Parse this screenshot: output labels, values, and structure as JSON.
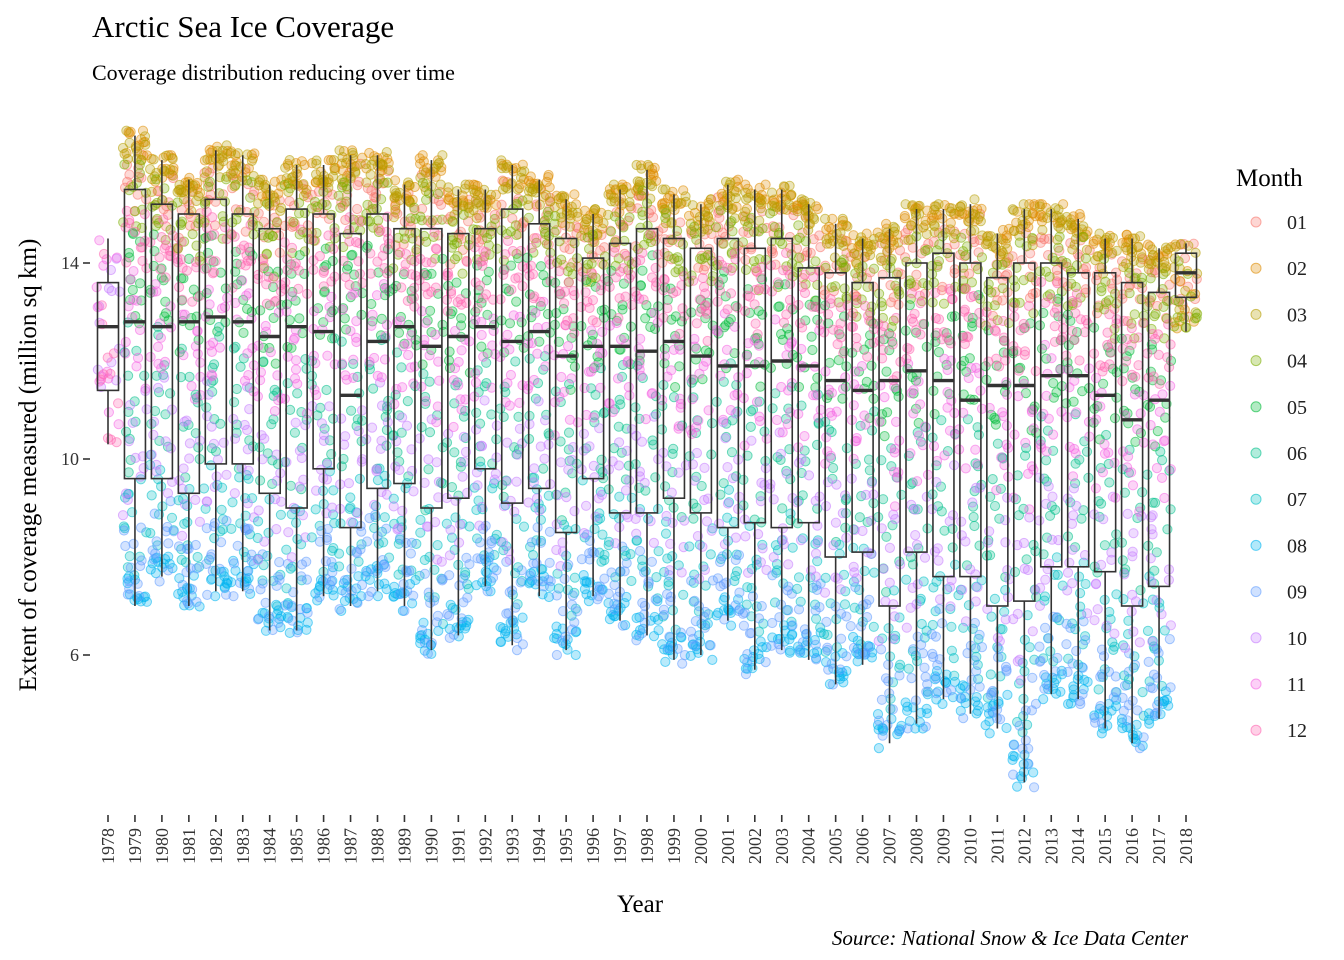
{
  "chart_data": {
    "type": "box",
    "title": "Arctic Sea Ice Coverage",
    "subtitle": "Coverage distribution reducing over time",
    "xlabel": "Year",
    "ylabel": "Extent of coverage measured (million sq km)",
    "caption": "Source: National Snow & Ice Data Center",
    "ylim": [
      3.2,
      16.8
    ],
    "yticks": [
      6,
      10,
      14
    ],
    "grid": false,
    "legend": {
      "title": "Month",
      "placement": "right",
      "entries": [
        "01",
        "02",
        "03",
        "04",
        "05",
        "06",
        "07",
        "08",
        "09",
        "10",
        "11",
        "12"
      ]
    },
    "month_colors": [
      "#F8766D",
      "#DE8C00",
      "#B79F00",
      "#7CAE00",
      "#00BA38",
      "#00C08B",
      "#00BFC4",
      "#00B4F0",
      "#619CFF",
      "#C77CFF",
      "#F564E3",
      "#FF64B0"
    ],
    "categories": [
      "1978",
      "1979",
      "1980",
      "1981",
      "1982",
      "1983",
      "1984",
      "1985",
      "1986",
      "1987",
      "1988",
      "1989",
      "1990",
      "1991",
      "1992",
      "1993",
      "1994",
      "1995",
      "1996",
      "1997",
      "1998",
      "1999",
      "2000",
      "2001",
      "2002",
      "2003",
      "2004",
      "2005",
      "2006",
      "2007",
      "2008",
      "2009",
      "2010",
      "2011",
      "2012",
      "2013",
      "2014",
      "2015",
      "2016",
      "2017",
      "2018"
    ],
    "boxes": [
      {
        "min": 10.3,
        "q1": 11.4,
        "median": 12.7,
        "q3": 13.6,
        "max": 14.5
      },
      {
        "min": 7.0,
        "q1": 9.6,
        "median": 12.8,
        "q3": 15.5,
        "max": 16.6
      },
      {
        "min": 7.6,
        "q1": 9.6,
        "median": 12.7,
        "q3": 15.2,
        "max": 16.1
      },
      {
        "min": 7.0,
        "q1": 9.3,
        "median": 12.8,
        "q3": 15.0,
        "max": 15.7
      },
      {
        "min": 7.3,
        "q1": 9.9,
        "median": 12.9,
        "q3": 15.3,
        "max": 16.3
      },
      {
        "min": 7.3,
        "q1": 9.9,
        "median": 12.8,
        "q3": 15.0,
        "max": 16.2
      },
      {
        "min": 6.5,
        "q1": 9.3,
        "median": 12.5,
        "q3": 14.7,
        "max": 15.6
      },
      {
        "min": 6.5,
        "q1": 9.0,
        "median": 12.7,
        "q3": 15.1,
        "max": 16.0
      },
      {
        "min": 7.2,
        "q1": 9.8,
        "median": 12.6,
        "q3": 15.0,
        "max": 16.0
      },
      {
        "min": 7.0,
        "q1": 8.6,
        "median": 11.3,
        "q3": 14.6,
        "max": 16.2
      },
      {
        "min": 7.3,
        "q1": 9.4,
        "median": 12.4,
        "q3": 15.0,
        "max": 16.2
      },
      {
        "min": 7.0,
        "q1": 9.5,
        "median": 12.7,
        "q3": 14.7,
        "max": 15.6
      },
      {
        "min": 6.1,
        "q1": 9.0,
        "median": 12.3,
        "q3": 14.7,
        "max": 16.1
      },
      {
        "min": 6.4,
        "q1": 9.2,
        "median": 12.5,
        "q3": 14.6,
        "max": 15.5
      },
      {
        "min": 7.4,
        "q1": 9.8,
        "median": 12.7,
        "q3": 14.7,
        "max": 15.5
      },
      {
        "min": 6.2,
        "q1": 9.1,
        "median": 12.4,
        "q3": 15.1,
        "max": 16.0
      },
      {
        "min": 7.2,
        "q1": 9.4,
        "median": 12.6,
        "q3": 14.8,
        "max": 15.7
      },
      {
        "min": 6.1,
        "q1": 8.5,
        "median": 12.1,
        "q3": 14.5,
        "max": 15.3
      },
      {
        "min": 7.2,
        "q1": 9.6,
        "median": 12.3,
        "q3": 14.1,
        "max": 15.0
      },
      {
        "min": 6.7,
        "q1": 8.9,
        "median": 12.3,
        "q3": 14.4,
        "max": 15.5
      },
      {
        "min": 6.4,
        "q1": 8.9,
        "median": 12.2,
        "q3": 14.7,
        "max": 15.9
      },
      {
        "min": 5.9,
        "q1": 9.2,
        "median": 12.4,
        "q3": 14.5,
        "max": 15.4
      },
      {
        "min": 6.0,
        "q1": 8.9,
        "median": 12.1,
        "q3": 14.3,
        "max": 15.2
      },
      {
        "min": 6.7,
        "q1": 8.6,
        "median": 11.9,
        "q3": 14.5,
        "max": 15.6
      },
      {
        "min": 5.7,
        "q1": 8.7,
        "median": 11.9,
        "q3": 14.3,
        "max": 15.5
      },
      {
        "min": 6.1,
        "q1": 8.6,
        "median": 12.0,
        "q3": 14.5,
        "max": 15.5
      },
      {
        "min": 5.9,
        "q1": 8.7,
        "median": 11.9,
        "q3": 13.9,
        "max": 15.2
      },
      {
        "min": 5.4,
        "q1": 8.0,
        "median": 11.6,
        "q3": 13.8,
        "max": 14.8
      },
      {
        "min": 5.8,
        "q1": 8.1,
        "median": 11.4,
        "q3": 13.6,
        "max": 14.5
      },
      {
        "min": 4.2,
        "q1": 7.0,
        "median": 11.6,
        "q3": 13.7,
        "max": 14.7
      },
      {
        "min": 4.6,
        "q1": 8.1,
        "median": 11.8,
        "q3": 14.0,
        "max": 15.1
      },
      {
        "min": 5.1,
        "q1": 7.6,
        "median": 11.6,
        "q3": 14.2,
        "max": 15.1
      },
      {
        "min": 4.8,
        "q1": 7.6,
        "median": 11.2,
        "q3": 14.0,
        "max": 15.2
      },
      {
        "min": 4.5,
        "q1": 7.0,
        "median": 11.5,
        "q3": 13.7,
        "max": 14.6
      },
      {
        "min": 3.4,
        "q1": 7.1,
        "median": 11.5,
        "q3": 14.0,
        "max": 15.1
      },
      {
        "min": 5.2,
        "q1": 7.8,
        "median": 11.7,
        "q3": 14.0,
        "max": 15.1
      },
      {
        "min": 5.1,
        "q1": 7.8,
        "median": 11.7,
        "q3": 13.8,
        "max": 14.9
      },
      {
        "min": 4.5,
        "q1": 7.7,
        "median": 11.3,
        "q3": 13.8,
        "max": 14.5
      },
      {
        "min": 4.2,
        "q1": 7.0,
        "median": 10.8,
        "q3": 13.6,
        "max": 14.5
      },
      {
        "min": 4.7,
        "q1": 7.4,
        "median": 11.2,
        "q3": 13.4,
        "max": 14.3
      },
      {
        "min": 12.6,
        "q1": 13.3,
        "median": 13.8,
        "q3": 14.2,
        "max": 14.4
      }
    ]
  }
}
